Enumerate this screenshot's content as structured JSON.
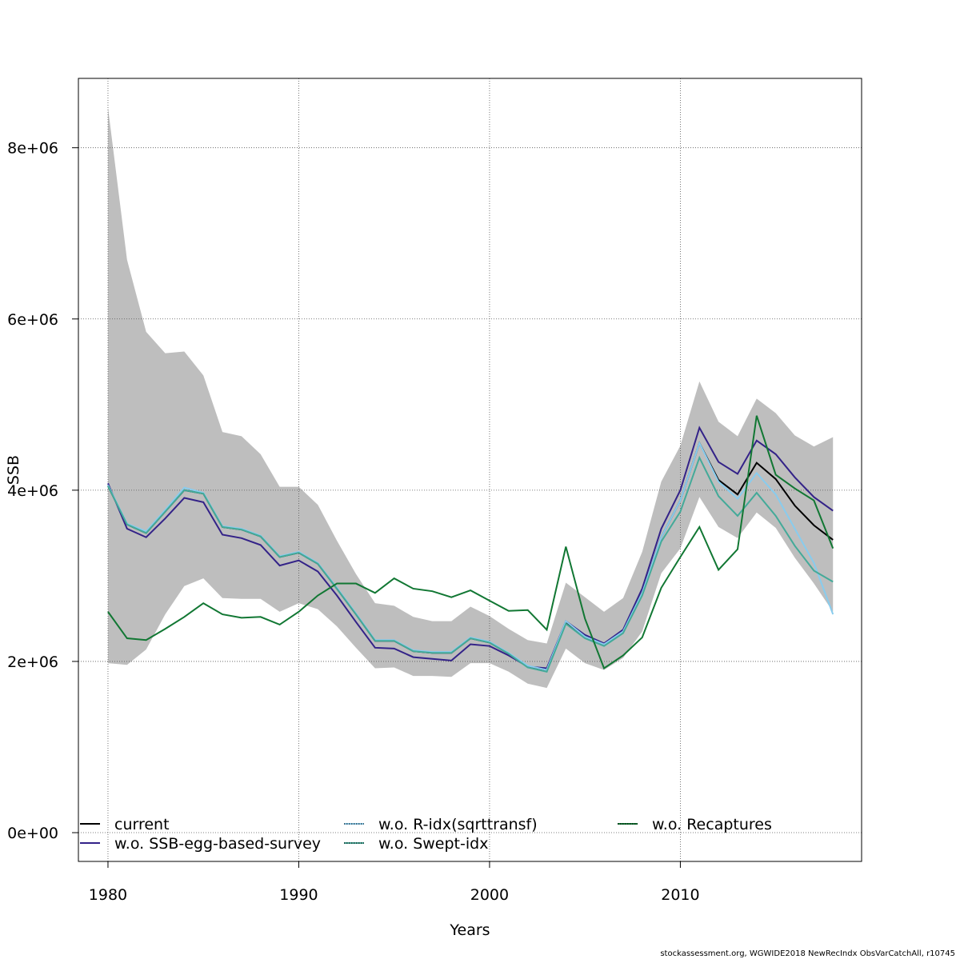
{
  "chart_data": {
    "type": "line",
    "title": "",
    "xlabel": "Years",
    "ylabel": "SSB",
    "xlim": [
      1978.45,
      2019.5
    ],
    "ylim": [
      -336000,
      8810000
    ],
    "grid": true,
    "legend_placement": "bottom",
    "x_ticks": [
      1980,
      1990,
      2000,
      2010
    ],
    "x_tick_labels": [
      "1980",
      "1990",
      "2000",
      "2010"
    ],
    "y_ticks": [
      0,
      2000000,
      4000000,
      6000000,
      8000000
    ],
    "y_tick_labels": [
      "0e+00",
      "2e+06",
      "4e+06",
      "6e+06",
      "8e+06"
    ],
    "x": [
      1980,
      1981,
      1982,
      1983,
      1984,
      1985,
      1986,
      1987,
      1988,
      1989,
      1990,
      1991,
      1992,
      1993,
      1994,
      1995,
      1996,
      1997,
      1998,
      1999,
      2000,
      2001,
      2002,
      2003,
      2004,
      2005,
      2006,
      2007,
      2008,
      2009,
      2010,
      2011,
      2012,
      2013,
      2014,
      2015,
      2016,
      2017,
      2018
    ],
    "band": {
      "color": "#bebebe",
      "upper": [
        8470000.0,
        6690000.0,
        5850000.0,
        5600000.0,
        5620000.0,
        5340000.0,
        4680000.0,
        4630000.0,
        4420000.0,
        4040000.0,
        4040000.0,
        3830000.0,
        3410000.0,
        3020000.0,
        2680000.0,
        2650000.0,
        2520000.0,
        2470000.0,
        2470000.0,
        2640000.0,
        2530000.0,
        2380000.0,
        2250000.0,
        2210000.0,
        2920000.0,
        2750000.0,
        2580000.0,
        2740000.0,
        3280000.0,
        4100000.0,
        4520000.0,
        5270000.0,
        4800000.0,
        4630000.0,
        5070000.0,
        4900000.0,
        4640000.0,
        4510000.0,
        4620000.0
      ],
      "lower": [
        1980000.0,
        1960000.0,
        2140000.0,
        2550000.0,
        2880000.0,
        2970000.0,
        2740000.0,
        2730000.0,
        2730000.0,
        2580000.0,
        2680000.0,
        2610000.0,
        2410000.0,
        2160000.0,
        1920000.0,
        1930000.0,
        1830000.0,
        1830000.0,
        1820000.0,
        1980000.0,
        1980000.0,
        1880000.0,
        1740000.0,
        1690000.0,
        2150000.0,
        1980000.0,
        1900000.0,
        2040000.0,
        2350000.0,
        3030000.0,
        3320000.0,
        3920000.0,
        3570000.0,
        3440000.0,
        3740000.0,
        3560000.0,
        3210000.0,
        2910000.0,
        2580000.0
      ]
    },
    "series": [
      {
        "name": "current",
        "color": "#000000",
        "values": [
          4050000.0,
          3600000.0,
          3500000.0,
          3750000.0,
          4000000.0,
          3960000.0,
          3570000.0,
          3540000.0,
          3460000.0,
          3220000.0,
          3270000.0,
          3140000.0,
          2850000.0,
          2550000.0,
          2240000.0,
          2240000.0,
          2120000.0,
          2100000.0,
          2100000.0,
          2270000.0,
          2220000.0,
          2090000.0,
          1940000.0,
          1900000.0,
          2460000.0,
          2290000.0,
          2200000.0,
          2350000.0,
          2800000.0,
          3450000.0,
          3880000.0,
          4550000.0,
          4120000.0,
          3950000.0,
          4320000.0,
          4130000.0,
          3820000.0,
          3590000.0,
          3420000.0
        ]
      },
      {
        "name": "w.o. SSB-egg-based-survey",
        "color": "#332288",
        "values": [
          4080000.0,
          3550000.0,
          3450000.0,
          3670000.0,
          3910000.0,
          3860000.0,
          3480000.0,
          3440000.0,
          3360000.0,
          3120000.0,
          3180000.0,
          3050000.0,
          2770000.0,
          2460000.0,
          2160000.0,
          2150000.0,
          2050000.0,
          2030000.0,
          2010000.0,
          2200000.0,
          2180000.0,
          2070000.0,
          1940000.0,
          1920000.0,
          2470000.0,
          2310000.0,
          2210000.0,
          2370000.0,
          2850000.0,
          3550000.0,
          4000000.0,
          4730000.0,
          4330000.0,
          4190000.0,
          4580000.0,
          4420000.0,
          4150000.0,
          3920000.0,
          3760000.0
        ]
      },
      {
        "name": "w.o. R-idx(sqrttransf)",
        "color": "#88ccee",
        "values": [
          4060000.0,
          3610000.0,
          3520000.0,
          3770000.0,
          4030000.0,
          3970000.0,
          3580000.0,
          3550000.0,
          3470000.0,
          3230000.0,
          3280000.0,
          3150000.0,
          2860000.0,
          2560000.0,
          2250000.0,
          2250000.0,
          2130000.0,
          2110000.0,
          2110000.0,
          2280000.0,
          2230000.0,
          2100000.0,
          1950000.0,
          1900000.0,
          2470000.0,
          2290000.0,
          2200000.0,
          2350000.0,
          2800000.0,
          3450000.0,
          3880000.0,
          4550000.0,
          4100000.0,
          3900000.0,
          4200000.0,
          3950000.0,
          3550000.0,
          3150000.0,
          2550000.0
        ]
      },
      {
        "name": "w.o. Swept-idx",
        "color": "#44aa99",
        "values": [
          4050000.0,
          3600000.0,
          3500000.0,
          3750000.0,
          4000000.0,
          3960000.0,
          3570000.0,
          3540000.0,
          3460000.0,
          3220000.0,
          3270000.0,
          3140000.0,
          2850000.0,
          2550000.0,
          2240000.0,
          2240000.0,
          2120000.0,
          2100000.0,
          2100000.0,
          2270000.0,
          2220000.0,
          2090000.0,
          1930000.0,
          1880000.0,
          2440000.0,
          2270000.0,
          2180000.0,
          2330000.0,
          2770000.0,
          3400000.0,
          3750000.0,
          4380000.0,
          3930000.0,
          3700000.0,
          3970000.0,
          3700000.0,
          3350000.0,
          3060000.0,
          2930000.0
        ]
      },
      {
        "name": "w.o. Recaptures",
        "color": "#117733",
        "values": [
          2580000.0,
          2270000.0,
          2250000.0,
          2380000.0,
          2520000.0,
          2680000.0,
          2550000.0,
          2510000.0,
          2520000.0,
          2430000.0,
          2580000.0,
          2770000.0,
          2910000.0,
          2910000.0,
          2800000.0,
          2970000.0,
          2850000.0,
          2820000.0,
          2750000.0,
          2830000.0,
          2710000.0,
          2590000.0,
          2600000.0,
          2370000.0,
          3340000.0,
          2500000.0,
          1920000.0,
          2070000.0,
          2280000.0,
          2860000.0,
          3220000.0,
          3570000.0,
          3070000.0,
          3310000.0,
          4870000.0,
          4180000.0,
          4020000.0,
          3880000.0,
          3320000.0
        ]
      }
    ]
  },
  "footer": "stockassessment.org, WGWIDE2018 NewRecIndx ObsVarCatchAll, r10745"
}
